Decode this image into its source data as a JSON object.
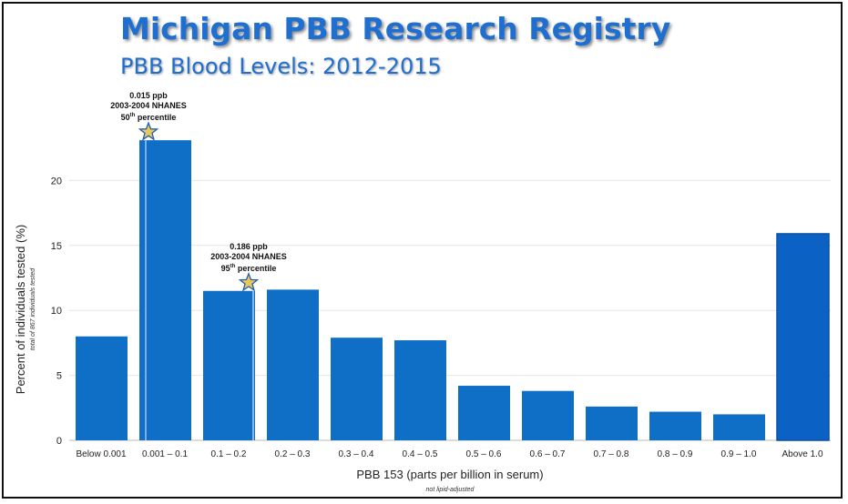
{
  "header": {
    "title": "Michigan PBB Research Registry",
    "subtitle": "PBB Blood Levels: 2012-2015"
  },
  "chart_data": {
    "type": "bar",
    "categories": [
      "Below 0.001",
      "0.001 – 0.1",
      "0.1 – 0.2",
      "0.2 – 0.3",
      "0.3 – 0.4",
      "0.4 – 0.5",
      "0.5 – 0.6",
      "0.6 – 0.7",
      "0.7 – 0.8",
      "0.8 – 0.9",
      "0.9 – 1.0",
      "Above 1.0"
    ],
    "values": [
      8.0,
      23.1,
      11.5,
      11.6,
      7.9,
      7.7,
      4.2,
      3.8,
      2.6,
      2.2,
      2.0,
      15.9
    ],
    "xlabel": "PBB 153 (parts per billion in serum)",
    "xlabel_note": "not lipid-adjusted",
    "ylabel": "Percent of individuals tested (%)",
    "ylabel_note": "total of 867 individuals tested",
    "ylim": [
      0,
      25
    ],
    "yticks": [
      0,
      5,
      10,
      15,
      20
    ],
    "colors": {
      "bar": "#0f6fc6",
      "highlight": "#0b62c4",
      "grid": "#e6e6e6"
    },
    "annotations": [
      {
        "category_index": 1,
        "value": 23.1,
        "lines": [
          "0.015 ppb",
          "2003-2004 NHANES"
        ],
        "pct_num": "50",
        "pct_sup": "th",
        "pct_word": " percentile"
      },
      {
        "category_index": 2,
        "value": 11.5,
        "lines": [
          "0.186 ppb",
          "2003-2004 NHANES"
        ],
        "pct_num": "95",
        "pct_sup": "th",
        "pct_word": " percentile"
      }
    ]
  }
}
